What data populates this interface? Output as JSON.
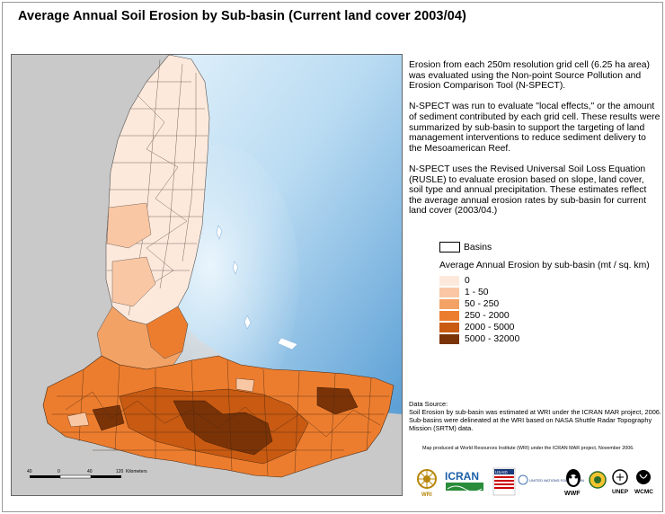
{
  "title": "Average Annual Soil Erosion by Sub-basin (Current land cover 2003/04)",
  "description": [
    "Erosion from each 250m resolution grid cell (6.25 ha area) was evaluated using the Non-point Source Pollution and Erosion Comparison Tool (N-SPECT).",
    "N-SPECT was run to evaluate \"local effects,\" or the amount of sediment contributed by each grid cell. These results were summarized by sub-basin to support the targeting of land management interventions to reduce sediment delivery to the Mesoamerican Reef.",
    "N-SPECT uses the Revised Universal Soil Loss Equation (RUSLE) to evaluate erosion based on slope, land cover, soil type and annual precipitation. These estimates reflect the average annual erosion rates by sub-basin for current land cover (2003/04.)"
  ],
  "legend": {
    "basins_label": "Basins",
    "title": "Average Annual Erosion by sub-basin (mt / sq. km)",
    "classes": [
      {
        "label": "0",
        "color": "#fde9dc"
      },
      {
        "label": "1 - 50",
        "color": "#f9c7a4"
      },
      {
        "label": "50 - 250",
        "color": "#f3a265"
      },
      {
        "label": "250 - 2000",
        "color": "#ed7d2e"
      },
      {
        "label": "2000 - 5000",
        "color": "#c85a12"
      },
      {
        "label": "5000 - 32000",
        "color": "#7a3307"
      }
    ]
  },
  "source": {
    "heading": "Data Source:",
    "text": "Soil Erosion by sub-basin was estimated at  WRI under the ICRAN MAR project, 2006.  Sub-basins were delineated at the WRI based on NASA Shuttle Radar Topography Mission (SRTM) data."
  },
  "credit": "Map produced at World Resources Institute (WRI) under the ICRAN MAR project, November 2006.",
  "scalebar": {
    "ticks": [
      "40",
      "0",
      "40",
      "120"
    ],
    "unit": "Kilometers"
  },
  "logos": [
    {
      "name": "wri-logo",
      "text": "WRI"
    },
    {
      "name": "icran-logo",
      "text": "ICRAN"
    },
    {
      "name": "usaid-logo",
      "text": "USAID"
    },
    {
      "name": "un-foundation-logo",
      "text": "UNITED NATIONS FOUNDATION"
    },
    {
      "name": "wwf-logo",
      "text": "WWF"
    },
    {
      "name": "ccad-logo",
      "text": ""
    },
    {
      "name": "unep-logo",
      "text": "UNEP"
    },
    {
      "name": "wcmc-logo",
      "text": "WCMC"
    }
  ],
  "colors": {
    "land_background": "#c9c9c9",
    "sea_shallow": "#dff0fb",
    "sea_deep": "#5ea3d8",
    "basin_outline": "#444444"
  }
}
